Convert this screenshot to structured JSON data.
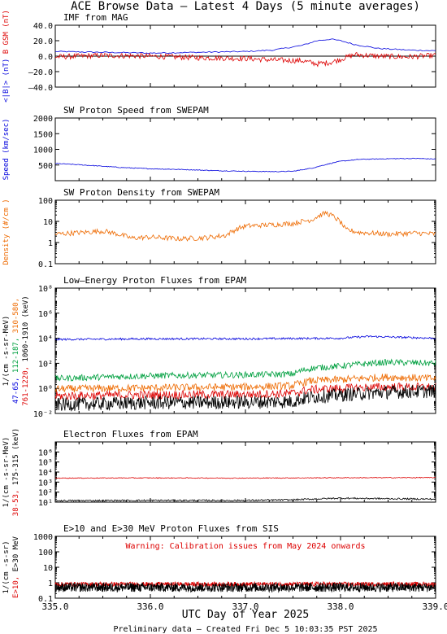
{
  "title": "ACE Browse Data – Latest 4 Days (5 minute averages)",
  "footer": "Preliminary data – Created Fri Dec  5 10:03:35 PST 2025",
  "xaxis": {
    "label": "UTC Day of Year 2025",
    "range": [
      335.0,
      339.0
    ],
    "ticks": [
      335.0,
      336.0,
      337.0,
      338.0,
      339.0
    ],
    "tick_labels": [
      "335.0",
      "336.0",
      "337.0",
      "338.0",
      "339.0"
    ]
  },
  "colors": {
    "blue": "#0000dd",
    "red": "#dd0000",
    "green": "#00a040",
    "orange": "#ee6a00",
    "black": "#000000"
  },
  "chart_data": [
    {
      "type": "line",
      "title": "IMF from MAG",
      "scale": "linear",
      "ylim": [
        -40,
        40
      ],
      "yticks": [
        -40,
        -20,
        0,
        20,
        40
      ],
      "ytick_labels": [
        "–40.0",
        "–20.0",
        "0.0",
        "20.0",
        "40.0"
      ],
      "ylabel_parts": [
        {
          "text": "<|B|> (nT)",
          "color": "blue"
        },
        {
          "text": "B  GSM (nT)",
          "color": "red"
        }
      ],
      "zero_line": true,
      "series": [
        {
          "name": "<|B|>",
          "color": "blue",
          "noise": 0.8,
          "step": 0.02,
          "x": [
            335.0,
            335.5,
            336.0,
            336.5,
            337.0,
            337.3,
            337.6,
            337.75,
            337.9,
            338.0,
            338.15,
            338.4,
            338.7,
            339.0
          ],
          "y": [
            6,
            5,
            4,
            5,
            6,
            8,
            14,
            20,
            22,
            20,
            15,
            10,
            8,
            7
          ]
        },
        {
          "name": "Bz GSM",
          "color": "red",
          "noise": 3.5,
          "step": 0.01,
          "x": [
            335.0,
            335.5,
            336.0,
            336.5,
            337.0,
            337.3,
            337.6,
            337.75,
            337.9,
            338.0,
            338.15,
            338.4,
            338.7,
            339.0
          ],
          "y": [
            -1,
            1,
            0,
            -2,
            -3,
            -5,
            -6,
            -10,
            -8,
            -4,
            2,
            0,
            -1,
            1
          ]
        }
      ]
    },
    {
      "type": "line",
      "title": "SW Proton Speed from SWEPAM",
      "scale": "linear",
      "ylim": [
        0,
        2000
      ],
      "yticks": [
        500,
        1000,
        1500,
        2000
      ],
      "ytick_labels": [
        "500",
        "1000",
        "1500",
        "2000"
      ],
      "ylabel_parts": [
        {
          "text": "Speed (km/sec)",
          "color": "blue"
        }
      ],
      "series": [
        {
          "name": "Speed",
          "color": "blue",
          "noise": 12,
          "step": 0.01,
          "x": [
            335.0,
            335.3,
            335.7,
            336.0,
            336.3,
            336.7,
            337.0,
            337.3,
            337.5,
            337.7,
            337.85,
            338.0,
            338.2,
            338.5,
            338.8,
            339.0
          ],
          "y": [
            550,
            500,
            420,
            380,
            360,
            320,
            300,
            290,
            300,
            400,
            520,
            620,
            680,
            700,
            710,
            690
          ]
        }
      ]
    },
    {
      "type": "line",
      "title": "SW Proton Density from SWEPAM",
      "scale": "log",
      "ylim": [
        0.1,
        100
      ],
      "yticks": [
        0.1,
        1,
        10,
        100
      ],
      "ytick_labels": [
        "0.1",
        "1",
        "10",
        "100"
      ],
      "ylabel_parts": [
        {
          "text": "Density (#/cm )",
          "color": "orange"
        }
      ],
      "series": [
        {
          "name": "Density",
          "color": "orange",
          "noise": 0.12,
          "step": 0.01,
          "x": [
            335.0,
            335.3,
            335.5,
            335.8,
            336.0,
            336.3,
            336.6,
            336.8,
            337.0,
            337.3,
            337.5,
            337.7,
            337.85,
            337.95,
            338.05,
            338.2,
            338.5,
            338.8,
            339.0
          ],
          "y": [
            2.5,
            3,
            3.5,
            1.6,
            1.8,
            1.5,
            1.7,
            2.2,
            6,
            7,
            8,
            12,
            25,
            14,
            4,
            3,
            2.5,
            2.8,
            2.5
          ]
        }
      ]
    },
    {
      "type": "line",
      "title": "Low–Energy Proton Fluxes from EPAM",
      "scale": "log",
      "ylim": [
        0.01,
        100000000
      ],
      "yticks": [
        0.01,
        1,
        100,
        10000,
        1000000,
        100000000
      ],
      "ytick_labels": [
        "10⁻²",
        "10⁰",
        "10²",
        "10⁴",
        "10⁶",
        "10⁸"
      ],
      "ylabel_rows": [
        [
          {
            "text": "1/(cm -s-sr-MeV)",
            "color": "black"
          }
        ],
        [
          {
            "text": "47-65, ",
            "color": "blue"
          },
          {
            "text": "112-187, ",
            "color": "green"
          },
          {
            "text": "310-580,",
            "color": "orange"
          }
        ],
        [
          {
            "text": "761-1220, ",
            "color": "red"
          },
          {
            "text": "1060-1910 (keV)",
            "color": "black"
          }
        ]
      ],
      "series": [
        {
          "name": "47-65",
          "color": "blue",
          "noise": 0.08,
          "step": 0.008,
          "x": [
            335.0,
            336.0,
            337.0,
            338.0,
            338.3,
            338.6,
            339.0
          ],
          "y": [
            8000,
            9000,
            9000,
            10000,
            14000,
            12000,
            10000
          ]
        },
        {
          "name": "112-187",
          "color": "green",
          "noise": 0.25,
          "step": 0.008,
          "x": [
            335.0,
            335.5,
            336.0,
            336.5,
            337.0,
            337.5,
            337.7,
            338.0,
            338.5,
            339.0
          ],
          "y": [
            6,
            8,
            10,
            11,
            12,
            14,
            40,
            60,
            120,
            100
          ]
        },
        {
          "name": "310-580",
          "color": "orange",
          "noise": 0.3,
          "step": 0.008,
          "x": [
            335.0,
            336.0,
            337.0,
            337.5,
            337.7,
            338.0,
            338.5,
            339.0
          ],
          "y": [
            0.9,
            1.1,
            1.3,
            1.6,
            4,
            5,
            8,
            6
          ]
        },
        {
          "name": "761-1220",
          "color": "red",
          "noise": 0.35,
          "step": 0.008,
          "x": [
            335.0,
            336.0,
            337.0,
            337.5,
            337.7,
            338.0,
            338.5,
            339.0
          ],
          "y": [
            0.25,
            0.3,
            0.32,
            0.4,
            0.8,
            1.0,
            1.3,
            1.2
          ]
        },
        {
          "name": "1060-1910",
          "color": "black",
          "noise": 0.55,
          "step": 0.006,
          "x": [
            335.0,
            336.0,
            337.0,
            337.5,
            337.7,
            338.0,
            338.5,
            339.0
          ],
          "y": [
            0.05,
            0.07,
            0.08,
            0.09,
            0.2,
            0.3,
            0.5,
            0.6
          ]
        }
      ]
    },
    {
      "type": "line",
      "title": "Electron Fluxes from EPAM",
      "scale": "log",
      "ylim": [
        10,
        10000000
      ],
      "yticks": [
        10,
        100,
        1000,
        10000,
        100000,
        1000000
      ],
      "ytick_labels": [
        "10¹",
        "10²",
        "10³",
        "10⁴",
        "10⁵",
        "10⁶"
      ],
      "ylabel_rows": [
        [
          {
            "text": "1/(cm -s-sr-MeV)",
            "color": "black"
          }
        ],
        [
          {
            "text": "38-53, ",
            "color": "red"
          },
          {
            "text": "175-315 (keV)",
            "color": "black"
          }
        ]
      ],
      "series": [
        {
          "name": "38-53",
          "color": "red",
          "noise": 0.04,
          "step": 0.008,
          "x": [
            335.0,
            336.0,
            337.0,
            338.0,
            339.0
          ],
          "y": [
            2500,
            2600,
            2500,
            2700,
            2800
          ]
        },
        {
          "name": "175-315",
          "color": "black",
          "noise": 0.08,
          "step": 0.008,
          "x": [
            335.0,
            336.0,
            337.0,
            337.5,
            338.0,
            338.5,
            339.0
          ],
          "y": [
            14,
            15,
            15,
            17,
            25,
            22,
            20
          ]
        }
      ]
    },
    {
      "type": "line",
      "title": "E>10 and E>30 MeV Proton Fluxes from SIS",
      "scale": "log",
      "ylim": [
        0.1,
        1000
      ],
      "yticks": [
        0.1,
        1,
        10,
        100,
        1000
      ],
      "ytick_labels": [
        "0.1",
        "1",
        "10",
        "100",
        "1000"
      ],
      "ylabel_rows": [
        [
          {
            "text": "1/(cm -s-sr)",
            "color": "black"
          }
        ],
        [
          {
            "text": "E>10, ",
            "color": "red"
          },
          {
            "text": "E>30 MeV",
            "color": "black"
          }
        ]
      ],
      "annotation": {
        "text": "Warning: Calibration issues from May 2024 onwards",
        "color": "red"
      },
      "series": [
        {
          "name": "E>10",
          "color": "red",
          "noise": 0.15,
          "step": 0.004,
          "x": [
            335.0,
            339.0
          ],
          "y": [
            0.8,
            0.8
          ]
        },
        {
          "name": "E>30",
          "color": "black",
          "noise": 0.3,
          "step": 0.003,
          "x": [
            335.0,
            339.0
          ],
          "y": [
            0.5,
            0.5
          ]
        }
      ]
    }
  ]
}
